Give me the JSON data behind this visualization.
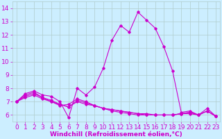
{
  "xlabel": "Windchill (Refroidissement éolien,°C)",
  "background_color": "#cceeff",
  "line_color": "#cc00cc",
  "grid_color": "#b0cccc",
  "x": [
    0,
    1,
    2,
    3,
    4,
    5,
    6,
    7,
    8,
    9,
    10,
    11,
    12,
    13,
    14,
    15,
    16,
    17,
    18,
    19,
    20,
    21,
    22,
    23
  ],
  "series1": [
    7.0,
    7.6,
    7.8,
    7.5,
    7.4,
    7.0,
    5.8,
    8.0,
    7.5,
    8.1,
    9.5,
    11.6,
    12.7,
    12.2,
    13.7,
    13.1,
    12.5,
    11.1,
    9.3,
    6.2,
    6.3,
    6.0,
    6.5,
    5.9
  ],
  "series2": [
    7.0,
    7.5,
    7.7,
    7.3,
    7.0,
    6.7,
    6.8,
    7.2,
    7.0,
    6.7,
    6.5,
    6.3,
    6.2,
    6.1,
    6.0,
    6.0,
    6.0,
    6.0,
    6.0,
    6.1,
    6.1,
    6.0,
    6.3,
    5.9
  ],
  "series3": [
    7.0,
    7.4,
    7.6,
    7.3,
    7.1,
    6.8,
    6.6,
    7.1,
    6.9,
    6.7,
    6.5,
    6.4,
    6.3,
    6.2,
    6.1,
    6.1,
    6.0,
    6.0,
    6.0,
    6.1,
    6.2,
    6.0,
    6.3,
    5.9
  ],
  "series4": [
    7.0,
    7.3,
    7.5,
    7.2,
    7.0,
    6.8,
    6.6,
    7.0,
    6.8,
    6.7,
    6.5,
    6.4,
    6.3,
    6.2,
    6.1,
    6.0,
    6.0,
    6.0,
    6.0,
    6.1,
    6.2,
    6.0,
    6.3,
    5.9
  ],
  "ylim": [
    5.5,
    14.5
  ],
  "yticks": [
    6,
    7,
    8,
    9,
    10,
    11,
    12,
    13,
    14
  ],
  "xticks": [
    0,
    1,
    2,
    3,
    4,
    5,
    6,
    7,
    8,
    9,
    10,
    11,
    12,
    13,
    14,
    15,
    16,
    17,
    18,
    19,
    20,
    21,
    22,
    23
  ],
  "tick_fontsize": 6.5,
  "xlabel_fontsize": 6.5
}
